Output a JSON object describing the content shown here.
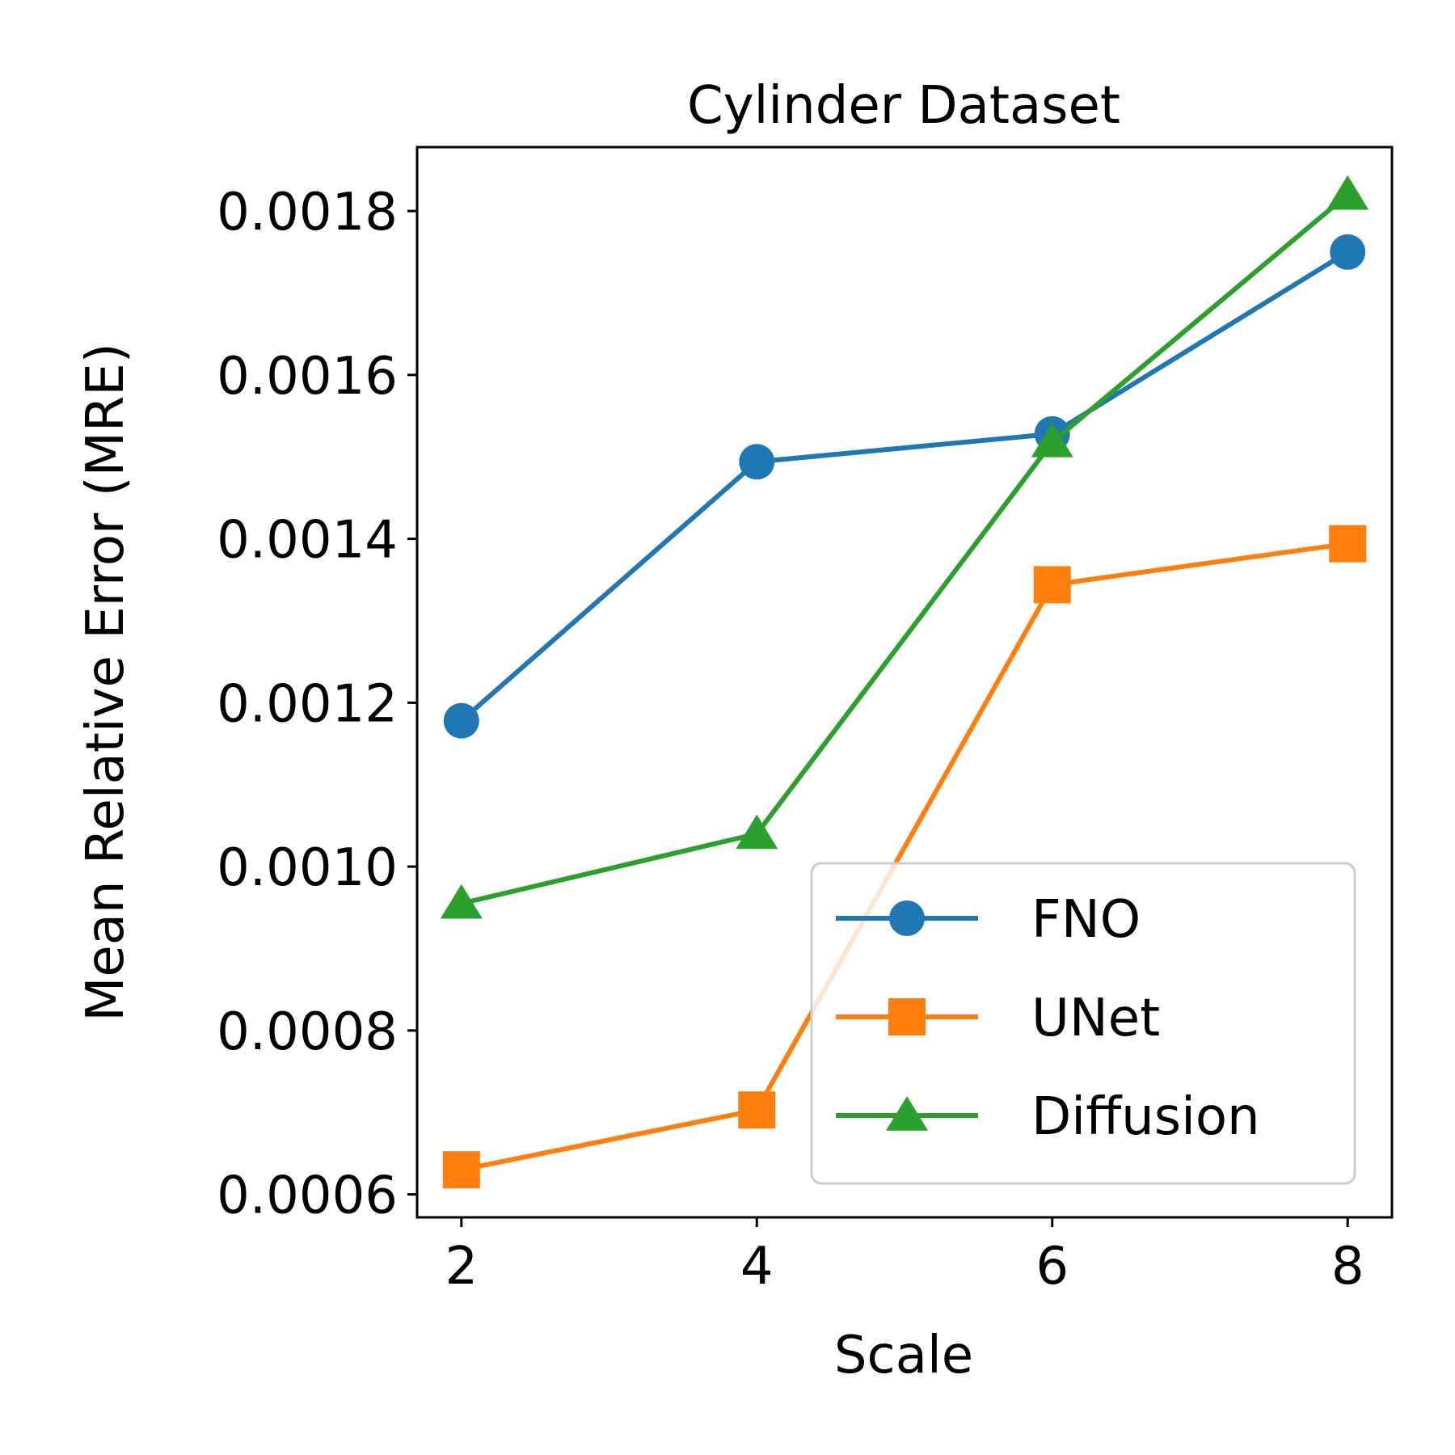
{
  "chart_data": {
    "type": "line",
    "title": "Cylinder Dataset",
    "xlabel": "Scale",
    "ylabel": "Mean Relative Error (MRE)",
    "x": [
      2,
      4,
      6,
      8
    ],
    "xlim": [
      1.7,
      8.3
    ],
    "ylim": [
      0.000572,
      0.001878
    ],
    "xticks": [
      2,
      4,
      6,
      8
    ],
    "yticks": [
      0.0006,
      0.0008,
      0.001,
      0.0012,
      0.0014,
      0.0016,
      0.0018
    ],
    "ytick_labels": [
      "0.0006",
      "0.0008",
      "0.0010",
      "0.0012",
      "0.0014",
      "0.0016",
      "0.0018"
    ],
    "grid": false,
    "legend_position": "lower-right",
    "series": [
      {
        "name": "FNO",
        "marker": "circle",
        "color": "#1f77b4",
        "values": [
          0.001178,
          0.001494,
          0.001528,
          0.00175
        ]
      },
      {
        "name": "UNet",
        "marker": "square",
        "color": "#ff7f0e",
        "values": [
          0.00063,
          0.000703,
          0.001344,
          0.001394
        ]
      },
      {
        "name": "Diffusion",
        "marker": "triangle",
        "color": "#2ca02c",
        "values": [
          0.000955,
          0.00104,
          0.001518,
          0.00182
        ]
      }
    ]
  }
}
